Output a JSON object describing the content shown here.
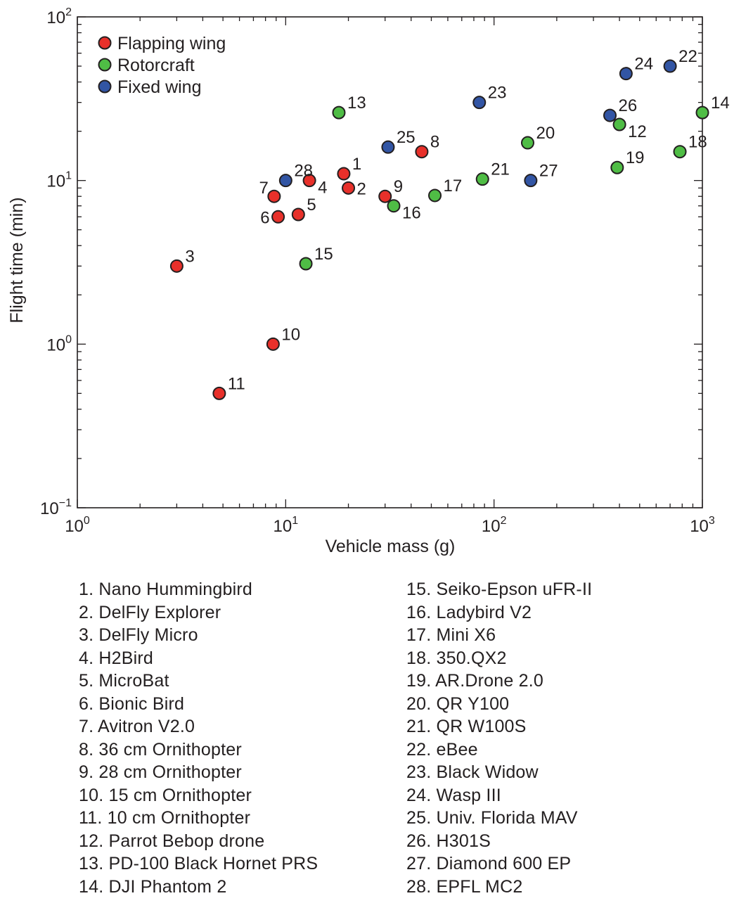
{
  "chart_data": {
    "type": "scatter",
    "xscale": "log",
    "yscale": "log",
    "xlim": [
      1,
      1000
    ],
    "ylim": [
      0.1,
      100
    ],
    "xlabel": "Vehicle mass (g)",
    "ylabel": "Flight time (min)",
    "x_ticks": [
      {
        "value": 1,
        "base": "10",
        "exp": "0"
      },
      {
        "value": 10,
        "base": "10",
        "exp": "1"
      },
      {
        "value": 100,
        "base": "10",
        "exp": "2"
      },
      {
        "value": 1000,
        "base": "10",
        "exp": "3"
      }
    ],
    "y_ticks": [
      {
        "value": 0.1,
        "base": "10",
        "exp": "−1"
      },
      {
        "value": 1,
        "base": "10",
        "exp": "0"
      },
      {
        "value": 10,
        "base": "10",
        "exp": "1"
      },
      {
        "value": 100,
        "base": "10",
        "exp": "2"
      }
    ],
    "grid": false,
    "legend_position": "top-left",
    "series": [
      {
        "name": "Flapping wing",
        "color": "#e8302a",
        "points": [
          {
            "label": "1",
            "x": 19,
            "y": 11,
            "label_pos": "upper-right"
          },
          {
            "label": "2",
            "x": 20,
            "y": 9,
            "label_pos": "right"
          },
          {
            "label": "3",
            "x": 3,
            "y": 3,
            "label_pos": "upper-right"
          },
          {
            "label": "4",
            "x": 13,
            "y": 10,
            "label_pos": "lower-right"
          },
          {
            "label": "5",
            "x": 11.5,
            "y": 6.2,
            "label_pos": "upper-right"
          },
          {
            "label": "6",
            "x": 9.2,
            "y": 6,
            "label_pos": "left"
          },
          {
            "label": "7",
            "x": 8.8,
            "y": 8,
            "label_pos": "upper-left"
          },
          {
            "label": "8",
            "x": 45,
            "y": 15,
            "label_pos": "upper-right"
          },
          {
            "label": "9",
            "x": 30,
            "y": 8,
            "label_pos": "upper-right"
          },
          {
            "label": "10",
            "x": 8.7,
            "y": 1,
            "label_pos": "upper-right"
          },
          {
            "label": "11",
            "x": 4.8,
            "y": 0.5,
            "label_pos": "upper-right"
          }
        ]
      },
      {
        "name": "Rotorcraft",
        "color": "#4fbd45",
        "points": [
          {
            "label": "12",
            "x": 400,
            "y": 22,
            "label_pos": "lower-right"
          },
          {
            "label": "13",
            "x": 18,
            "y": 26,
            "label_pos": "upper-right"
          },
          {
            "label": "14",
            "x": 1000,
            "y": 26,
            "label_pos": "upper-right"
          },
          {
            "label": "15",
            "x": 12.5,
            "y": 3.1,
            "label_pos": "upper-right"
          },
          {
            "label": "16",
            "x": 33,
            "y": 7,
            "label_pos": "lower-right"
          },
          {
            "label": "17",
            "x": 52,
            "y": 8.1,
            "label_pos": "upper-right"
          },
          {
            "label": "18",
            "x": 780,
            "y": 15,
            "label_pos": "upper-right"
          },
          {
            "label": "19",
            "x": 390,
            "y": 12,
            "label_pos": "upper-right"
          },
          {
            "label": "20",
            "x": 145,
            "y": 17,
            "label_pos": "upper-right"
          },
          {
            "label": "21",
            "x": 88,
            "y": 10.2,
            "label_pos": "upper-right"
          }
        ]
      },
      {
        "name": "Fixed wing",
        "color": "#3255a4",
        "points": [
          {
            "label": "22",
            "x": 700,
            "y": 50,
            "label_pos": "upper-right"
          },
          {
            "label": "23",
            "x": 85,
            "y": 30,
            "label_pos": "upper-right"
          },
          {
            "label": "24",
            "x": 430,
            "y": 45,
            "label_pos": "upper-right"
          },
          {
            "label": "25",
            "x": 31,
            "y": 16,
            "label_pos": "upper-right"
          },
          {
            "label": "26",
            "x": 360,
            "y": 25,
            "label_pos": "upper-right"
          },
          {
            "label": "27",
            "x": 150,
            "y": 10,
            "label_pos": "upper-right"
          },
          {
            "label": "28",
            "x": 10,
            "y": 10,
            "label_pos": "upper-right"
          }
        ]
      }
    ]
  },
  "vehicle_list": {
    "left": [
      "1. Nano Hummingbird",
      "2. DelFly Explorer",
      "3. DelFly Micro",
      "4. H2Bird",
      "5. MicroBat",
      "6. Bionic Bird",
      "7. Avitron V2.0",
      "8. 36 cm Ornithopter",
      "9. 28 cm Ornithopter",
      "10. 15 cm Ornithopter",
      "11. 10 cm Ornithopter",
      "12. Parrot Bebop drone",
      "13. PD-100 Black Hornet PRS",
      "14. DJI Phantom 2"
    ],
    "right": [
      "15. Seiko-Epson uFR-II",
      "16. Ladybird V2",
      "17. Mini X6",
      "18. 350.QX2",
      "19. AR.Drone 2.0",
      "20. QR Y100",
      "21. QR W100S",
      "22. eBee",
      "23. Black Widow",
      "24. Wasp III",
      "25. Univ. Florida MAV",
      "26. H301S",
      "27. Diamond 600 EP",
      "28. EPFL MC2"
    ]
  }
}
